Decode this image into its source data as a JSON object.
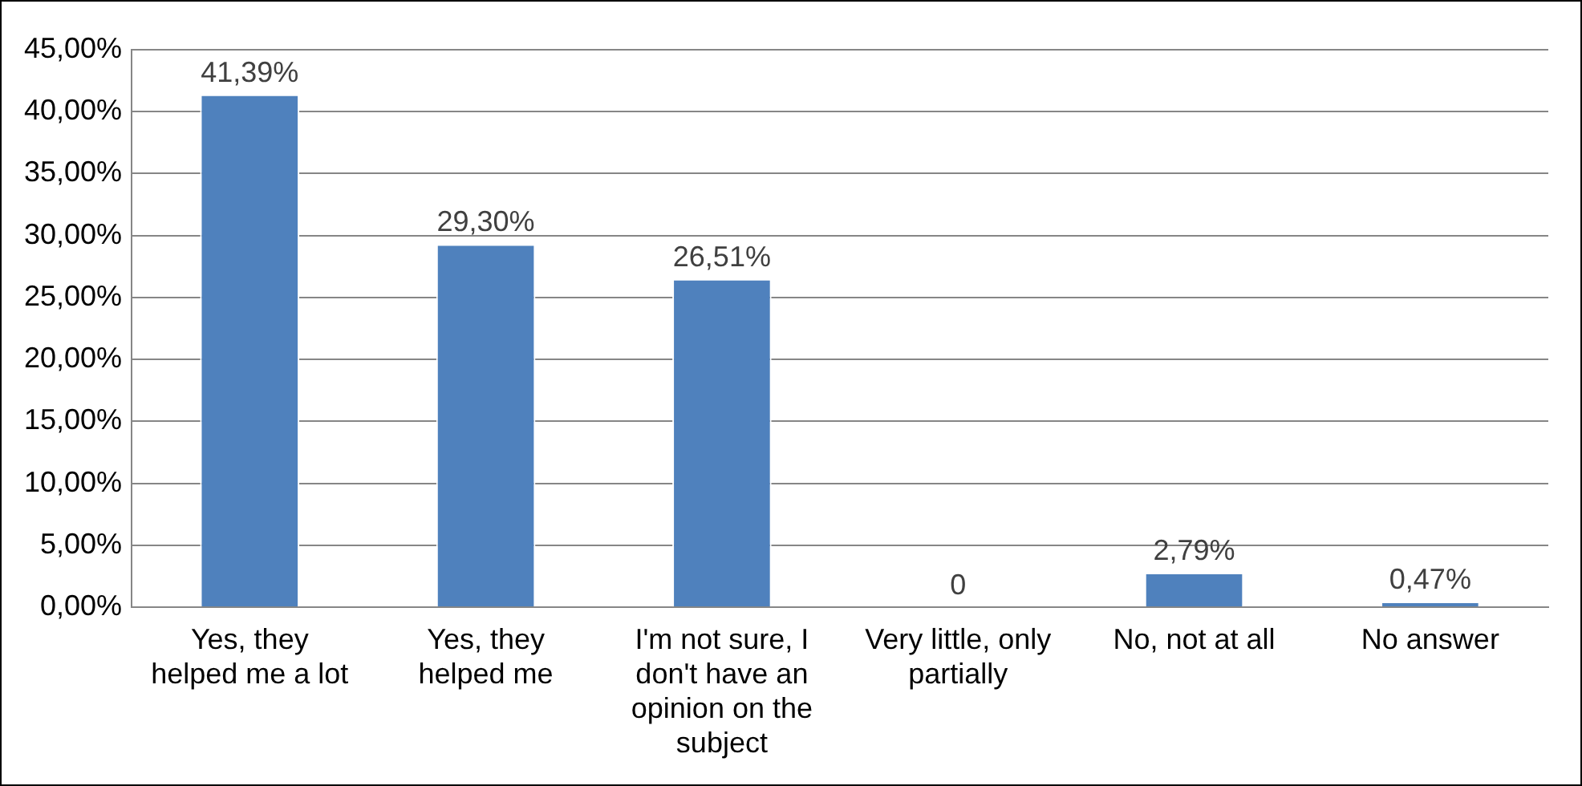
{
  "chart_data": {
    "type": "bar",
    "categories": [
      "Yes, they helped me a lot",
      "Yes, they helped me",
      "I'm not sure, I don't have an opinion on the subject",
      "Very little, only partially",
      "No, not at all",
      "No answer"
    ],
    "values": [
      41.39,
      29.3,
      26.51,
      0,
      2.79,
      0.47
    ],
    "value_labels": [
      "41,39%",
      "29,30%",
      "26,51%",
      "0",
      "2,79%",
      "0,47%"
    ],
    "color": "#4f81bd",
    "ylim": [
      0,
      45
    ],
    "yticks": [
      {
        "value": 0,
        "label": "0,00%"
      },
      {
        "value": 5,
        "label": "5,00%"
      },
      {
        "value": 10,
        "label": "10,00%"
      },
      {
        "value": 15,
        "label": "15,00%"
      },
      {
        "value": 20,
        "label": "20,00%"
      },
      {
        "value": 25,
        "label": "25,00%"
      },
      {
        "value": 30,
        "label": "30,00%"
      },
      {
        "value": 35,
        "label": "35,00%"
      },
      {
        "value": 40,
        "label": "40,00%"
      },
      {
        "value": 45,
        "label": "45,00%"
      }
    ],
    "grid": "y"
  }
}
